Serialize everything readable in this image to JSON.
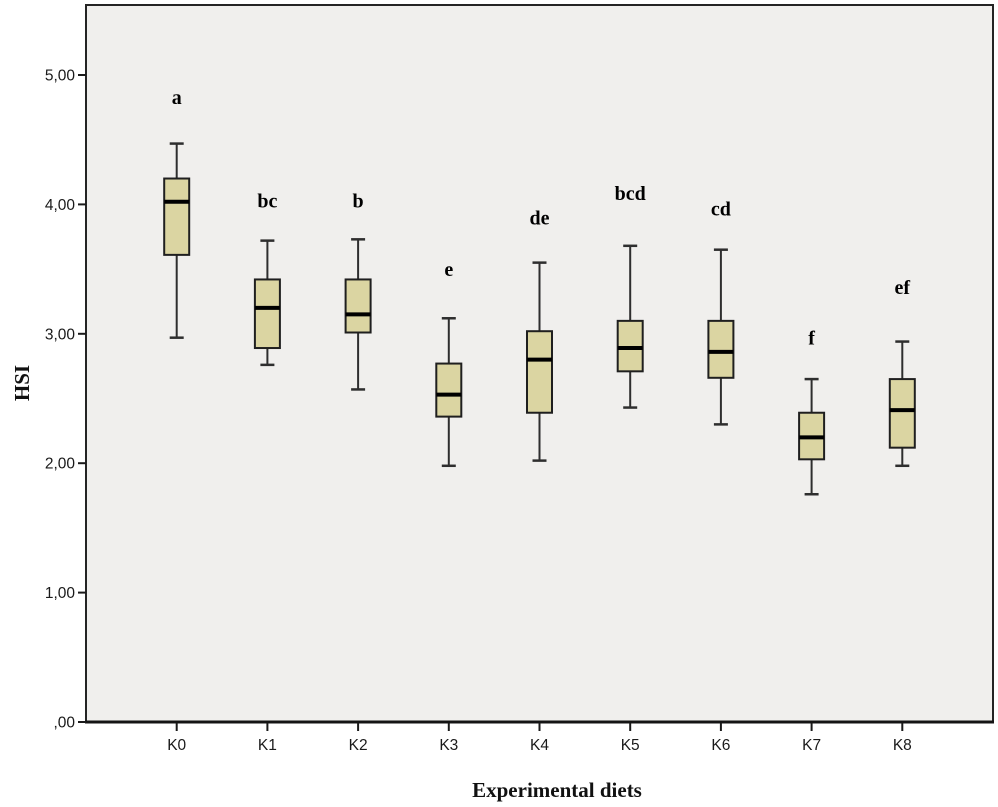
{
  "chart_data": {
    "type": "boxplot",
    "title": "",
    "xlabel": "Experimental diets",
    "ylabel": "HSI",
    "categories": [
      "K0",
      "K1",
      "K2",
      "K3",
      "K4",
      "K5",
      "K6",
      "K7",
      "K8"
    ],
    "y_ticks": [
      {
        "value": 0,
        "label": ",00"
      },
      {
        "value": 1,
        "label": "1,00"
      },
      {
        "value": 2,
        "label": "2,00"
      },
      {
        "value": 3,
        "label": "3,00"
      },
      {
        "value": 4,
        "label": "4,00"
      },
      {
        "value": 5,
        "label": "5,00"
      }
    ],
    "ylim": [
      0,
      5.54
    ],
    "grid": false,
    "legend": "none",
    "boxes": [
      {
        "category": "K0",
        "letter": "a",
        "letter_value": 4.83,
        "whisker_low": 2.97,
        "q1": 3.61,
        "median": 4.02,
        "q3": 4.2,
        "whisker_high": 4.47
      },
      {
        "category": "K1",
        "letter": "bc",
        "letter_value": 4.03,
        "whisker_low": 2.76,
        "q1": 2.89,
        "median": 3.2,
        "q3": 3.42,
        "whisker_high": 3.72
      },
      {
        "category": "K2",
        "letter": "b",
        "letter_value": 4.03,
        "whisker_low": 2.57,
        "q1": 3.01,
        "median": 3.15,
        "q3": 3.42,
        "whisker_high": 3.73
      },
      {
        "category": "K3",
        "letter": "e",
        "letter_value": 3.5,
        "whisker_low": 1.98,
        "q1": 2.36,
        "median": 2.53,
        "q3": 2.77,
        "whisker_high": 3.12
      },
      {
        "category": "K4",
        "letter": "de",
        "letter_value": 3.9,
        "whisker_low": 2.02,
        "q1": 2.39,
        "median": 2.8,
        "q3": 3.02,
        "whisker_high": 3.55
      },
      {
        "category": "K5",
        "letter": "bcd",
        "letter_value": 4.09,
        "whisker_low": 2.43,
        "q1": 2.71,
        "median": 2.89,
        "q3": 3.1,
        "whisker_high": 3.68
      },
      {
        "category": "K6",
        "letter": "cd",
        "letter_value": 3.97,
        "whisker_low": 2.3,
        "q1": 2.66,
        "median": 2.86,
        "q3": 3.1,
        "whisker_high": 3.65
      },
      {
        "category": "K7",
        "letter": "f",
        "letter_value": 2.97,
        "whisker_low": 1.76,
        "q1": 2.03,
        "median": 2.2,
        "q3": 2.39,
        "whisker_high": 2.65
      },
      {
        "category": "K8",
        "letter": "ef",
        "letter_value": 3.36,
        "whisker_low": 1.98,
        "q1": 2.12,
        "median": 2.41,
        "q3": 2.65,
        "whisker_high": 2.94
      }
    ],
    "colors": {
      "box_fill": "#dbd5a2",
      "box_border": "#1f1f1f",
      "median": "#000000",
      "whisker": "#2e2e2e",
      "panel_bg": "#f0efed",
      "panel_border": "#242424",
      "page_bg": "#ffffff",
      "text": "#1a1a1a"
    }
  }
}
